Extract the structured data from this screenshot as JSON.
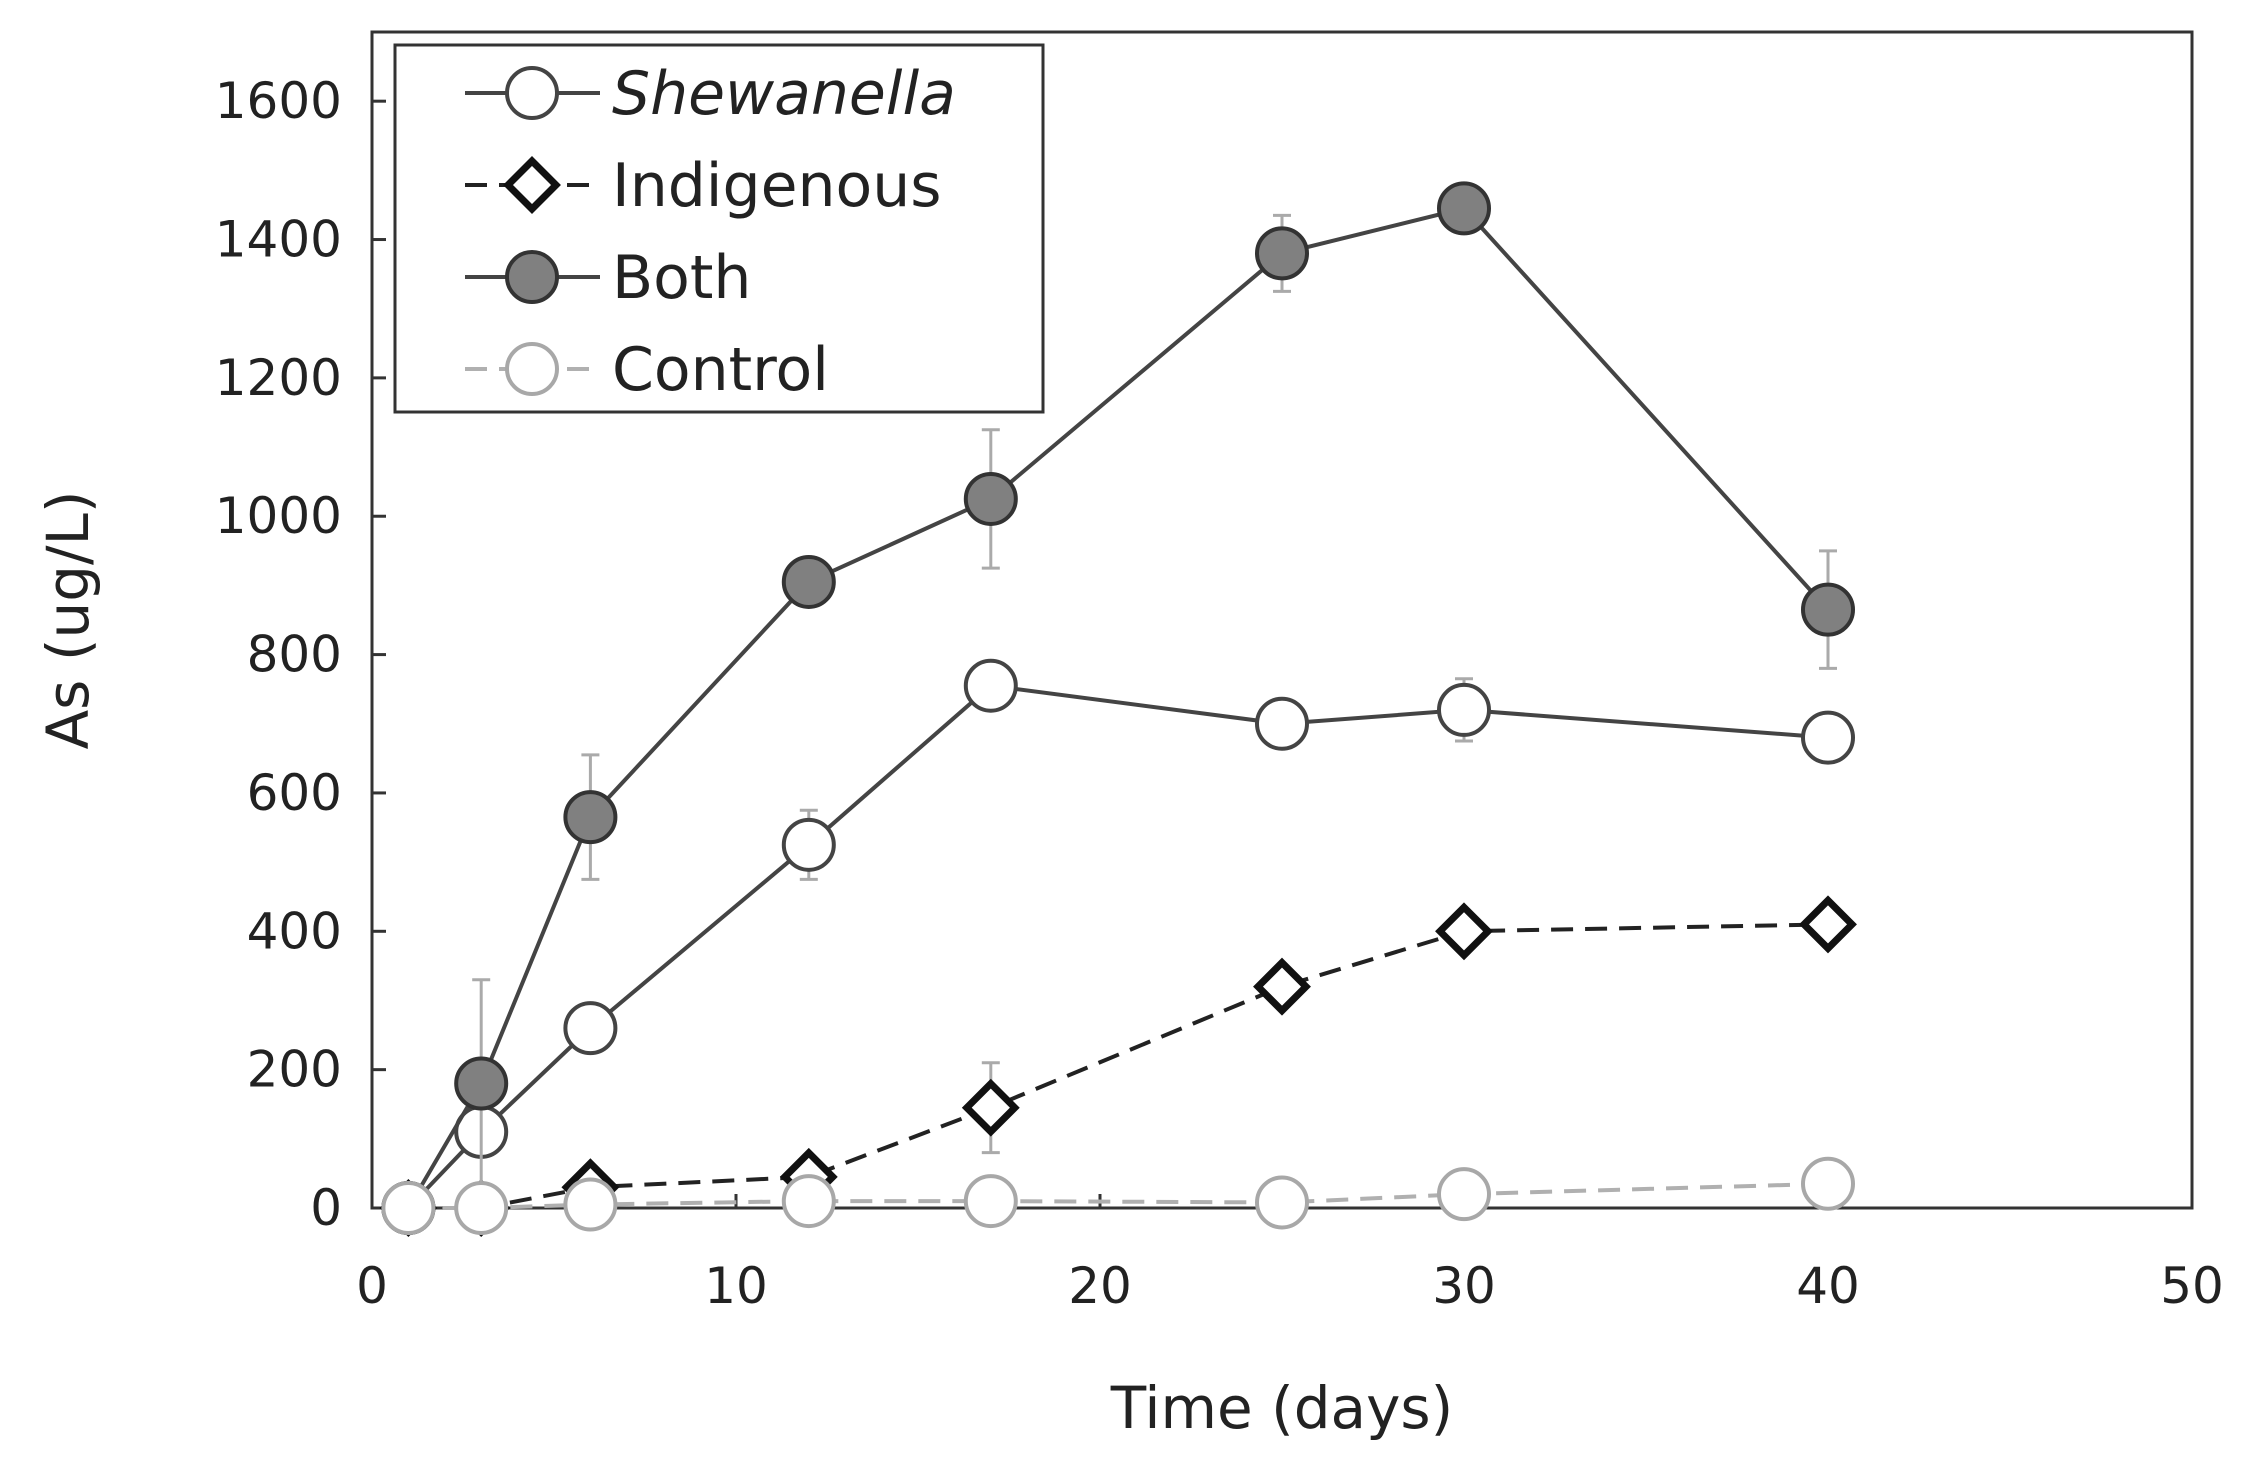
{
  "chart_data": {
    "type": "line",
    "xlabel": "Time (days)",
    "ylabel": "As (ug/L)",
    "xlim": [
      0,
      50
    ],
    "ylim": [
      0,
      1700
    ],
    "xticks": [
      0,
      10,
      20,
      30,
      40,
      50
    ],
    "yticks": [
      0,
      200,
      400,
      600,
      800,
      1000,
      1200,
      1400,
      1600
    ],
    "xtick_labels": [
      "0",
      "10",
      "20",
      "30",
      "40",
      "50"
    ],
    "ytick_labels": [
      "0",
      "200",
      "400",
      "600",
      "800",
      "1000",
      "1200",
      "1400",
      "1600"
    ],
    "grid": false,
    "legend_position": "top-left",
    "series": [
      {
        "name": "Shewanella",
        "italic": true,
        "marker": "circle-open",
        "line": "solid",
        "line_color": "#444444",
        "marker_fill": "#ffffff",
        "marker_stroke": "#444444",
        "x": [
          1,
          3,
          6,
          12,
          17,
          25,
          30,
          40
        ],
        "y": [
          0,
          110,
          260,
          525,
          755,
          700,
          720,
          680
        ],
        "error": [
          0,
          10,
          15,
          50,
          20,
          10,
          45,
          15
        ]
      },
      {
        "name": "Indigenous",
        "italic": false,
        "marker": "diamond-open",
        "line": "dashed",
        "line_color": "#222222",
        "marker_fill": "#ffffff",
        "marker_stroke": "#111111",
        "x": [
          1,
          3,
          6,
          12,
          17,
          25,
          30,
          40
        ],
        "y": [
          0,
          0,
          30,
          45,
          145,
          320,
          400,
          410
        ],
        "error": [
          0,
          0,
          10,
          10,
          65,
          15,
          10,
          10
        ]
      },
      {
        "name": "Both",
        "italic": false,
        "marker": "circle-filled",
        "line": "solid",
        "line_color": "#444444",
        "marker_fill": "#808080",
        "marker_stroke": "#333333",
        "x": [
          1,
          3,
          6,
          12,
          17,
          25,
          30,
          40
        ],
        "y": [
          0,
          180,
          565,
          905,
          1025,
          1380,
          1445,
          865
        ],
        "error": [
          0,
          150,
          90,
          20,
          100,
          55,
          10,
          85
        ]
      },
      {
        "name": "Control",
        "italic": false,
        "marker": "circle-open",
        "line": "dashed",
        "line_color": "#b0b0b0",
        "marker_fill": "#ffffff",
        "marker_stroke": "#a8a8a8",
        "x": [
          1,
          3,
          6,
          12,
          17,
          25,
          30,
          40
        ],
        "y": [
          0,
          0,
          5,
          10,
          10,
          8,
          20,
          35
        ],
        "error": [
          0,
          0,
          0,
          0,
          0,
          0,
          0,
          0
        ]
      }
    ]
  }
}
